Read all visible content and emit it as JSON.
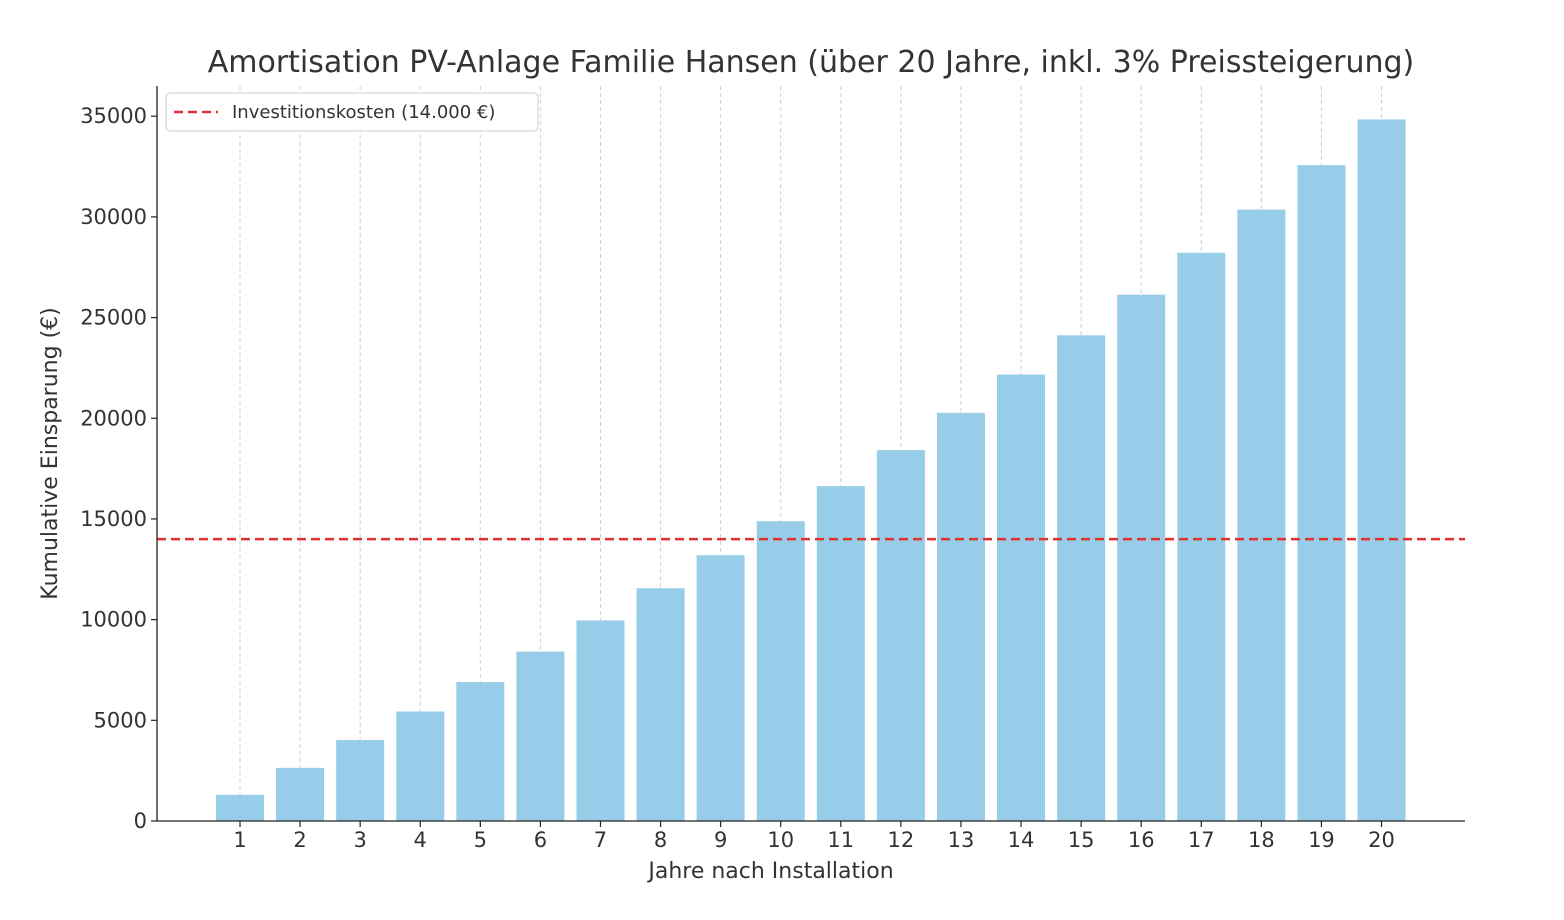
{
  "chart_data": {
    "type": "bar",
    "title": "Amortisation PV-Anlage Familie Hansen (über 20 Jahre, inkl. 3% Preissteigerung)",
    "xlabel": "Jahre nach Installation",
    "ylabel": "Kumulative Einsparung (€)",
    "categories": [
      "1",
      "2",
      "3",
      "4",
      "5",
      "6",
      "7",
      "8",
      "9",
      "10",
      "11",
      "12",
      "13",
      "14",
      "15",
      "16",
      "17",
      "18",
      "19",
      "20"
    ],
    "values": [
      1300,
      2640,
      4020,
      5440,
      6900,
      8410,
      9960,
      11560,
      13200,
      14890,
      16630,
      18420,
      20270,
      22170,
      24120,
      26140,
      28220,
      30360,
      32570,
      34840
    ],
    "ylim": [
      0,
      36500
    ],
    "yticks": [
      0,
      5000,
      10000,
      15000,
      20000,
      25000,
      30000,
      35000
    ],
    "reference_line": {
      "label": "Investitionskosten (14.000 €)",
      "value": 14000,
      "color": "#e03131",
      "style": "dashed"
    },
    "bar_color": "#97cde8",
    "grid": "vertical dashed",
    "legend_position": "top-left"
  }
}
